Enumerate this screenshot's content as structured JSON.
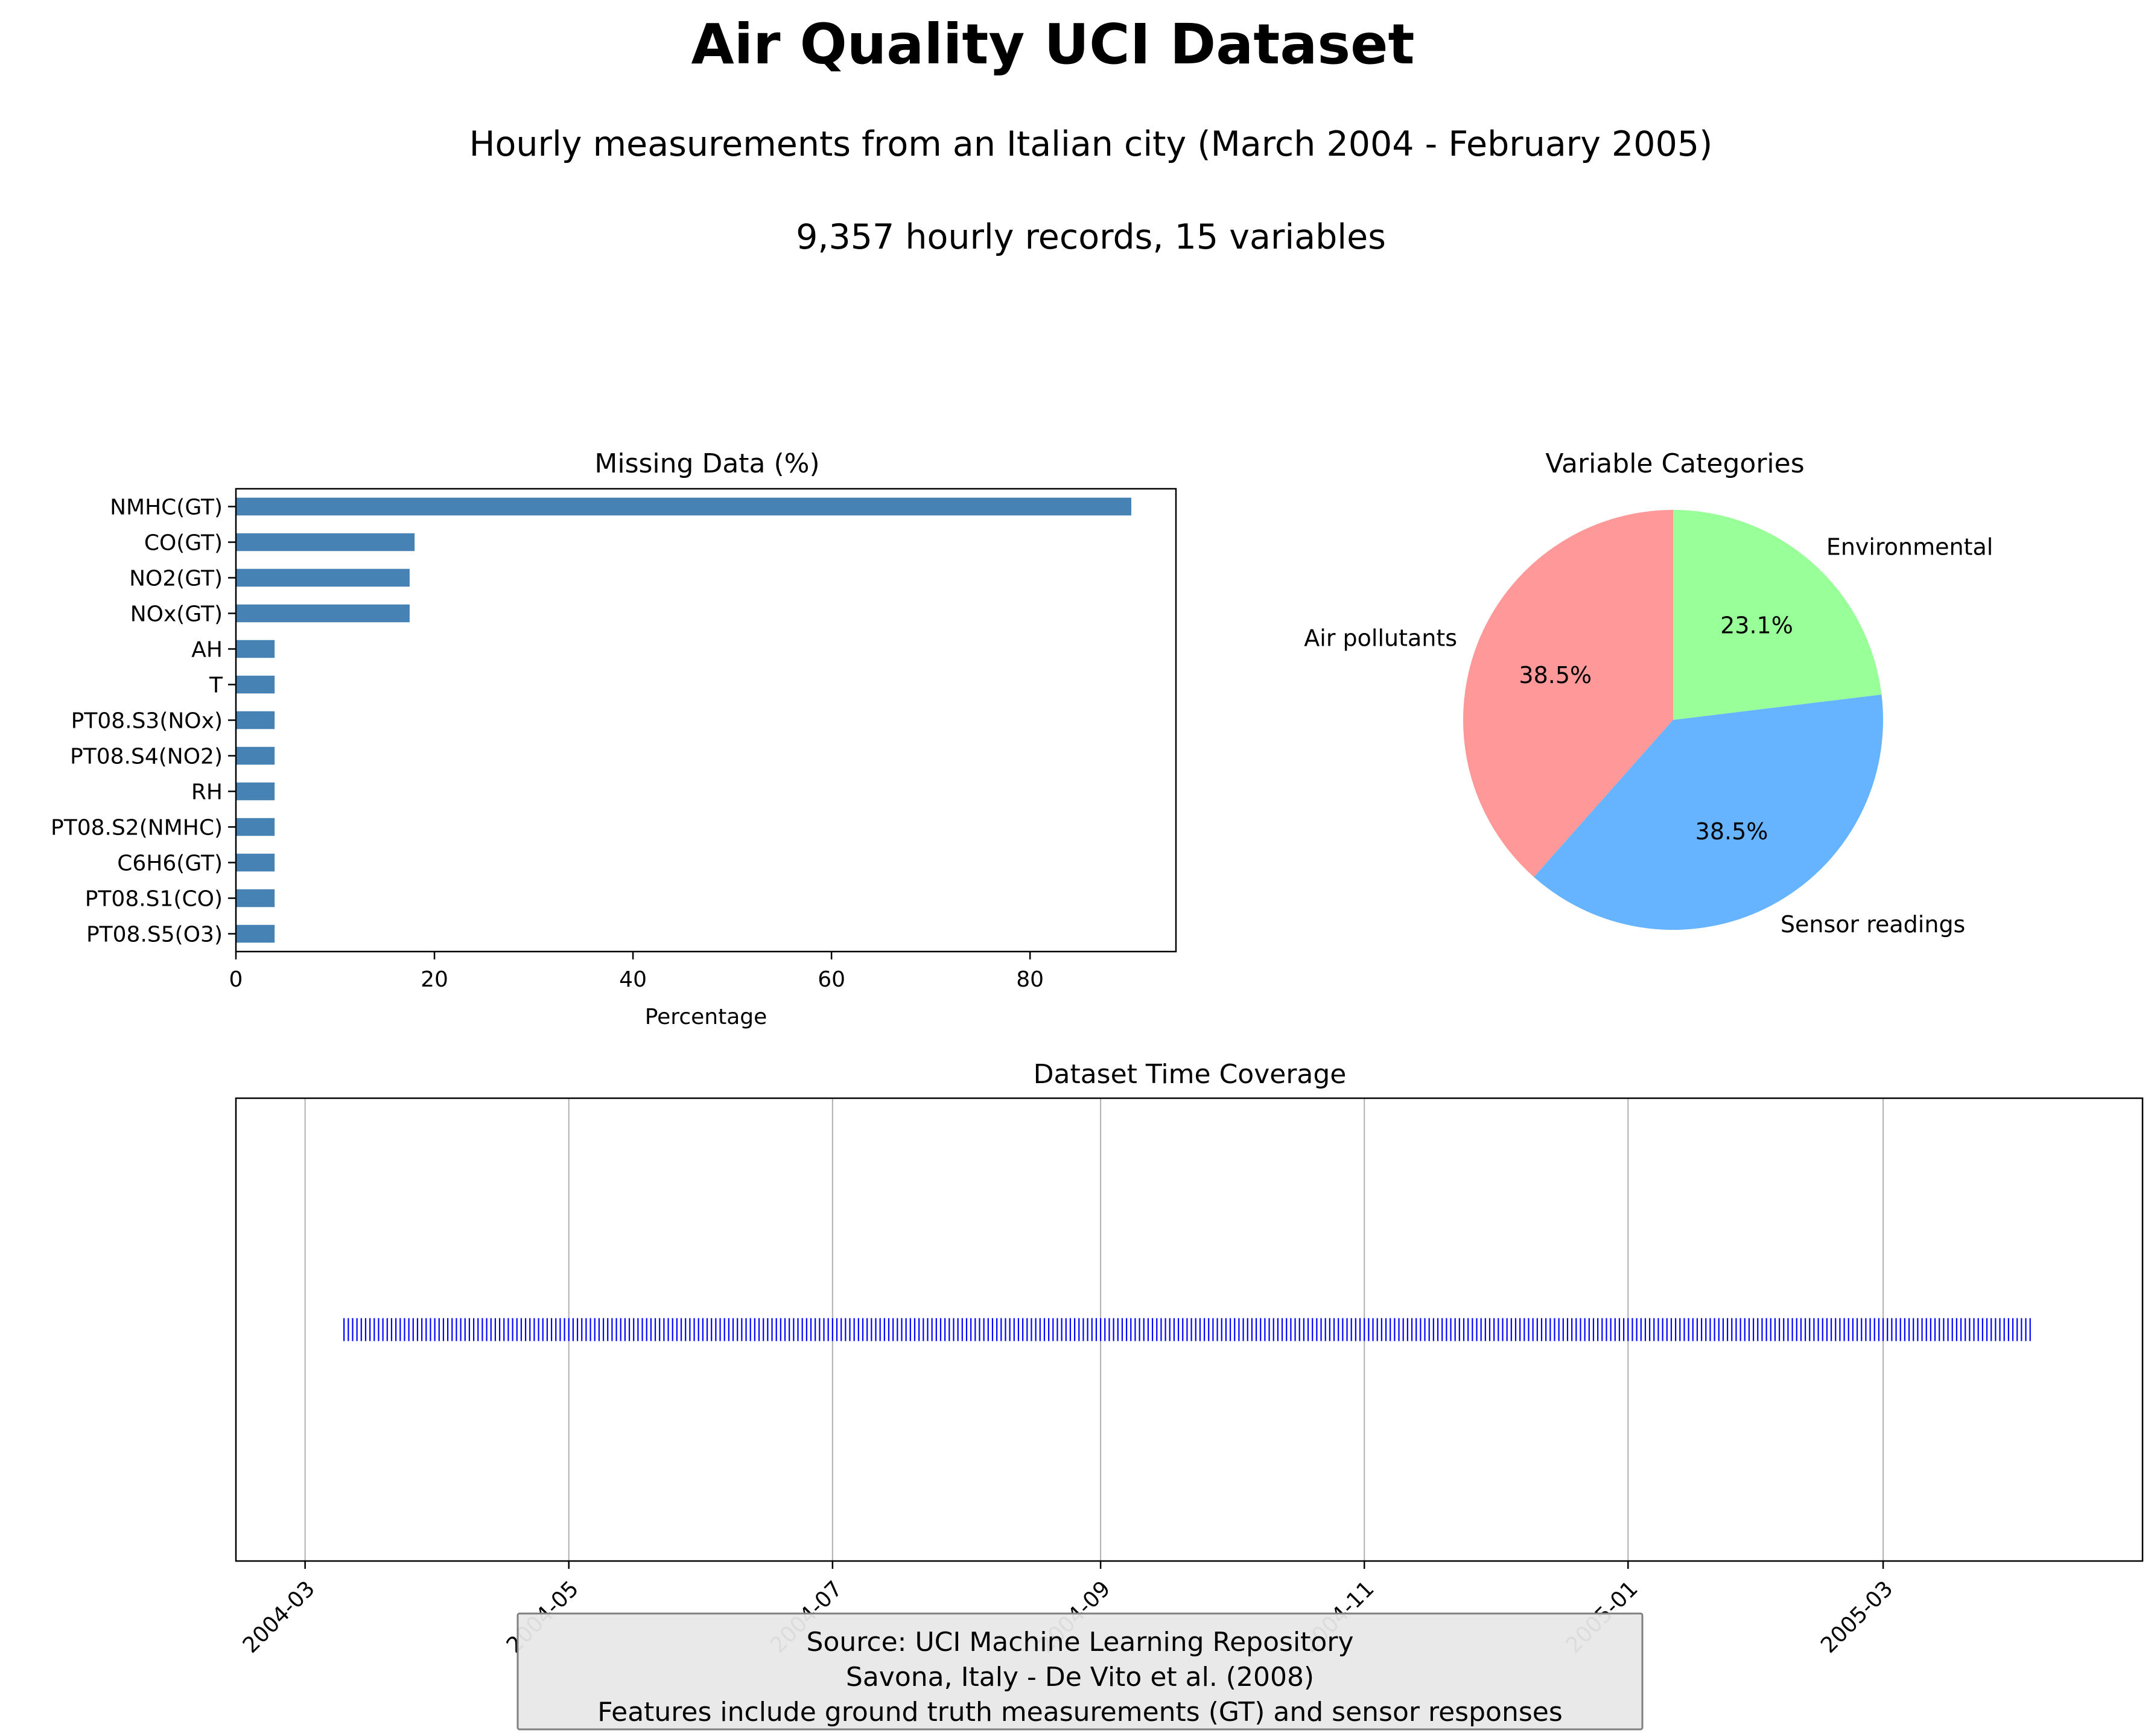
{
  "header": {
    "title": "Air Quality UCI Dataset",
    "subtitle": "Hourly measurements from an Italian city (March 2004 - February 2005)",
    "summary": "9,357 hourly records, 15 variables"
  },
  "footer": {
    "lines": [
      "Source: UCI Machine Learning Repository",
      "Savona, Italy - De Vito et al. (2008)",
      "Features include ground truth measurements (GT) and sensor responses"
    ]
  },
  "colors": {
    "bar": "#4682b4",
    "coverage": "#0000ff",
    "grid": "#b0b0b0",
    "footer_bg": "#e8e8e8",
    "footer_border": "#808080"
  },
  "chart_data": [
    {
      "id": "missing",
      "type": "bar",
      "orientation": "horizontal",
      "title": "Missing Data (%)",
      "xlabel": "Percentage",
      "ylabel": "",
      "categories": [
        "NMHC(GT)",
        "CO(GT)",
        "NO2(GT)",
        "NOx(GT)",
        "AH",
        "T",
        "PT08.S3(NOx)",
        "PT08.S4(NO2)",
        "RH",
        "PT08.S2(NMHC)",
        "C6H6(GT)",
        "PT08.S1(CO)",
        "PT08.S5(O3)"
      ],
      "values": [
        90.2,
        18.0,
        17.5,
        17.5,
        3.9,
        3.9,
        3.9,
        3.9,
        3.9,
        3.9,
        3.9,
        3.9,
        3.9
      ],
      "xlim": [
        0,
        94.7
      ],
      "xticks": [
        0,
        20,
        40,
        60,
        80
      ],
      "grid": false
    },
    {
      "id": "categories",
      "type": "pie",
      "title": "Variable Categories",
      "labels": [
        "Air pollutants",
        "Sensor readings",
        "Environmental"
      ],
      "values": [
        38.5,
        38.5,
        23.1
      ],
      "value_labels": [
        "38.5%",
        "38.5%",
        "23.1%"
      ],
      "colors": [
        "#ff9999",
        "#66b3ff",
        "#99ff99"
      ],
      "start_angle": 90,
      "direction": "counterclockwise"
    },
    {
      "id": "coverage",
      "type": "scatter",
      "marker": "|",
      "title": "Dataset Time Coverage",
      "xlabel": "",
      "ylabel": "",
      "x_start": "2004-03-10",
      "x_end": "2005-04-04",
      "sample_interval_days": 1,
      "y": 1,
      "xlim": [
        "2004-02-14",
        "2005-04-30"
      ],
      "xticks": [
        "2004-03",
        "2004-05",
        "2004-07",
        "2004-09",
        "2004-11",
        "2005-01",
        "2005-03"
      ],
      "grid": "x"
    }
  ]
}
